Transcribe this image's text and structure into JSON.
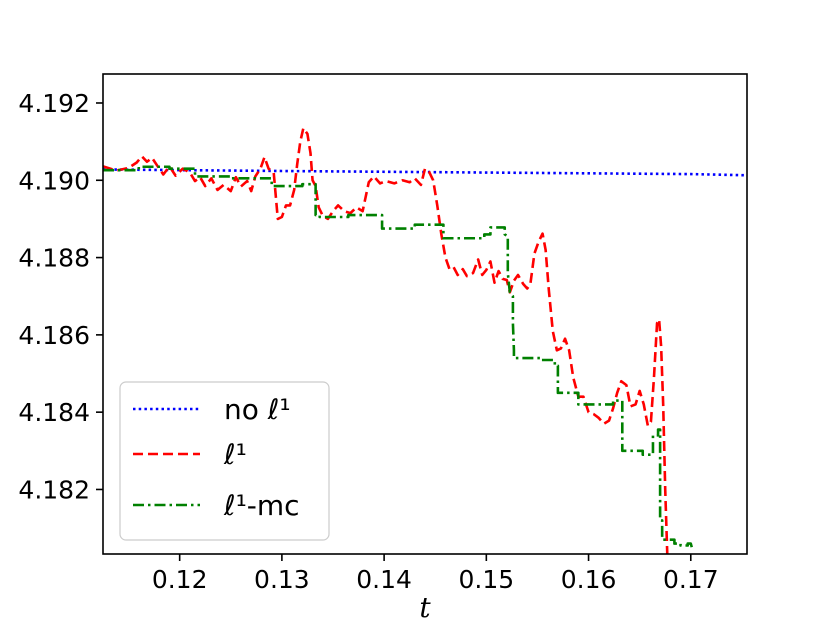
{
  "chart_data": {
    "type": "line",
    "title": "",
    "xlabel": "t",
    "ylabel": "",
    "xlim": [
      0.1125,
      0.1755
    ],
    "ylim": [
      4.18033,
      4.19275
    ],
    "x_ticks": [
      "0.12",
      "0.13",
      "0.14",
      "0.15",
      "0.16",
      "0.17"
    ],
    "y_ticks": [
      "4.182",
      "4.184",
      "4.186",
      "4.188",
      "4.190",
      "4.192"
    ],
    "grid": false,
    "legend_position": "lower-left",
    "series": [
      {
        "name": "no ℓ¹",
        "color": "#0000ff",
        "style": "dotted",
        "points": [
          [
            0.1125,
            4.19028
          ],
          [
            0.13,
            4.19024
          ],
          [
            0.15,
            4.1902
          ],
          [
            0.17,
            4.19016
          ],
          [
            0.1755,
            4.19013
          ]
        ]
      },
      {
        "name": "ℓ¹",
        "color": "#ff0000",
        "style": "dashed",
        "points": [
          [
            0.1125,
            4.19036
          ],
          [
            0.1138,
            4.19025
          ],
          [
            0.115,
            4.19032
          ],
          [
            0.1158,
            4.19046
          ],
          [
            0.1163,
            4.19062
          ],
          [
            0.1168,
            4.19048
          ],
          [
            0.1173,
            4.19058
          ],
          [
            0.1178,
            4.19038
          ],
          [
            0.1184,
            4.19015
          ],
          [
            0.119,
            4.19036
          ],
          [
            0.1196,
            4.19012
          ],
          [
            0.1203,
            4.1903
          ],
          [
            0.121,
            4.1902
          ],
          [
            0.1215,
            4.18998
          ],
          [
            0.122,
            4.19008
          ],
          [
            0.1225,
            4.18985
          ],
          [
            0.1231,
            4.19005
          ],
          [
            0.1237,
            4.18975
          ],
          [
            0.1243,
            4.18988
          ],
          [
            0.125,
            4.18972
          ],
          [
            0.1255,
            4.19008
          ],
          [
            0.126,
            4.18984
          ],
          [
            0.1266,
            4.18998
          ],
          [
            0.127,
            4.18972
          ],
          [
            0.1274,
            4.1901
          ],
          [
            0.1279,
            4.1903
          ],
          [
            0.1283,
            4.1906
          ],
          [
            0.1287,
            4.1903
          ],
          [
            0.1292,
            4.1902
          ],
          [
            0.1296,
            4.189
          ],
          [
            0.13,
            4.18905
          ],
          [
            0.1304,
            4.18935
          ],
          [
            0.1308,
            4.18935
          ],
          [
            0.1312,
            4.18975
          ],
          [
            0.1315,
            4.19042
          ],
          [
            0.1318,
            4.191
          ],
          [
            0.1321,
            4.19135
          ],
          [
            0.1325,
            4.1912
          ],
          [
            0.1328,
            4.1907
          ],
          [
            0.133,
            4.19
          ],
          [
            0.1333,
            4.18985
          ],
          [
            0.1336,
            4.1893
          ],
          [
            0.134,
            4.18908
          ],
          [
            0.1345,
            4.189
          ],
          [
            0.135,
            4.1892
          ],
          [
            0.1355,
            4.18935
          ],
          [
            0.1361,
            4.1892
          ],
          [
            0.1367,
            4.18915
          ],
          [
            0.1373,
            4.1893
          ],
          [
            0.1379,
            4.1892
          ],
          [
            0.1385,
            4.18995
          ],
          [
            0.139,
            4.1901
          ],
          [
            0.1396,
            4.18992
          ],
          [
            0.1402,
            4.18998
          ],
          [
            0.141,
            4.18992
          ],
          [
            0.1418,
            4.19
          ],
          [
            0.1425,
            4.18995
          ],
          [
            0.143,
            4.19005
          ],
          [
            0.1436,
            4.18988
          ],
          [
            0.144,
            4.1903
          ],
          [
            0.1444,
            4.19022
          ],
          [
            0.1448,
            4.19
          ],
          [
            0.1452,
            4.18935
          ],
          [
            0.1456,
            4.1886
          ],
          [
            0.146,
            4.188
          ],
          [
            0.1464,
            4.1877
          ],
          [
            0.1468,
            4.18775
          ],
          [
            0.1472,
            4.18755
          ],
          [
            0.1477,
            4.1877
          ],
          [
            0.1481,
            4.18752
          ],
          [
            0.1487,
            4.1876
          ],
          [
            0.1492,
            4.18795
          ],
          [
            0.1496,
            4.18755
          ],
          [
            0.15,
            4.18768
          ],
          [
            0.1504,
            4.1879
          ],
          [
            0.1508,
            4.18735
          ],
          [
            0.1512,
            4.18765
          ],
          [
            0.1516,
            4.18745
          ],
          [
            0.152,
            4.18742
          ],
          [
            0.1523,
            4.1871
          ],
          [
            0.1527,
            4.1874
          ],
          [
            0.1531,
            4.18755
          ],
          [
            0.1536,
            4.18732
          ],
          [
            0.154,
            4.1872
          ],
          [
            0.1543,
            4.1873
          ],
          [
            0.1547,
            4.1881
          ],
          [
            0.1551,
            4.1884
          ],
          [
            0.1555,
            4.18862
          ],
          [
            0.1558,
            4.1882
          ],
          [
            0.1561,
            4.1872
          ],
          [
            0.1565,
            4.1861
          ],
          [
            0.1569,
            4.1856
          ],
          [
            0.1573,
            4.18565
          ],
          [
            0.1577,
            4.1859
          ],
          [
            0.1581,
            4.1856
          ],
          [
            0.1585,
            4.1849
          ],
          [
            0.159,
            4.1844
          ],
          [
            0.1595,
            4.1844
          ],
          [
            0.16,
            4.184
          ],
          [
            0.1605,
            4.18395
          ],
          [
            0.161,
            4.18385
          ],
          [
            0.1615,
            4.1837
          ],
          [
            0.162,
            4.18378
          ],
          [
            0.1624,
            4.1841
          ],
          [
            0.1628,
            4.1845
          ],
          [
            0.1632,
            4.1848
          ],
          [
            0.1637,
            4.1847
          ],
          [
            0.1641,
            4.18415
          ],
          [
            0.1646,
            4.1842
          ],
          [
            0.165,
            4.18455
          ],
          [
            0.1654,
            4.1842
          ],
          [
            0.1658,
            4.18365
          ],
          [
            0.1661,
            4.18375
          ],
          [
            0.1664,
            4.1849
          ],
          [
            0.1667,
            4.1863
          ],
          [
            0.1669,
            4.1864
          ],
          [
            0.1671,
            4.1857
          ],
          [
            0.1673,
            4.1842
          ],
          [
            0.1675,
            4.182
          ],
          [
            0.1677,
            4.18033
          ]
        ]
      },
      {
        "name": "ℓ¹-mc",
        "color": "#008000",
        "style": "dashdot",
        "points": [
          [
            0.1125,
            4.19026
          ],
          [
            0.116,
            4.19026
          ],
          [
            0.116,
            4.19035
          ],
          [
            0.119,
            4.19035
          ],
          [
            0.119,
            4.1903
          ],
          [
            0.1215,
            4.1903
          ],
          [
            0.1215,
            4.1901
          ],
          [
            0.125,
            4.1901
          ],
          [
            0.125,
            4.19005
          ],
          [
            0.129,
            4.19005
          ],
          [
            0.129,
            4.18985
          ],
          [
            0.132,
            4.18985
          ],
          [
            0.132,
            4.1899
          ],
          [
            0.1333,
            4.1899
          ],
          [
            0.1333,
            4.1891
          ],
          [
            0.1337,
            4.1891
          ],
          [
            0.1337,
            4.18905
          ],
          [
            0.1365,
            4.18905
          ],
          [
            0.1365,
            4.1891
          ],
          [
            0.1398,
            4.1891
          ],
          [
            0.1398,
            4.18875
          ],
          [
            0.143,
            4.18875
          ],
          [
            0.143,
            4.18885
          ],
          [
            0.1458,
            4.18885
          ],
          [
            0.1458,
            4.1885
          ],
          [
            0.1498,
            4.1885
          ],
          [
            0.1498,
            4.1886
          ],
          [
            0.1504,
            4.1886
          ],
          [
            0.1504,
            4.18878
          ],
          [
            0.1518,
            4.18878
          ],
          [
            0.1518,
            4.1886
          ],
          [
            0.1521,
            4.18855
          ],
          [
            0.1521,
            4.1876
          ],
          [
            0.1523,
            4.1871
          ],
          [
            0.1526,
            4.187
          ],
          [
            0.1526,
            4.1863
          ],
          [
            0.1527,
            4.1856
          ],
          [
            0.1527,
            4.1854
          ],
          [
            0.1554,
            4.1854
          ],
          [
            0.1554,
            4.18535
          ],
          [
            0.1567,
            4.18535
          ],
          [
            0.1567,
            4.1852
          ],
          [
            0.157,
            4.1852
          ],
          [
            0.157,
            4.1845
          ],
          [
            0.159,
            4.1845
          ],
          [
            0.159,
            4.1842
          ],
          [
            0.1624,
            4.1842
          ],
          [
            0.1624,
            4.1843
          ],
          [
            0.1633,
            4.1843
          ],
          [
            0.1633,
            4.183
          ],
          [
            0.1653,
            4.183
          ],
          [
            0.1653,
            4.1829
          ],
          [
            0.1663,
            4.1829
          ],
          [
            0.1663,
            4.1834
          ],
          [
            0.1668,
            4.1834
          ],
          [
            0.1668,
            4.18355
          ],
          [
            0.167,
            4.18355
          ],
          [
            0.167,
            4.1812
          ],
          [
            0.1672,
            4.1812
          ],
          [
            0.1672,
            4.1807
          ],
          [
            0.1684,
            4.1807
          ],
          [
            0.1684,
            4.1806
          ],
          [
            0.169,
            4.1806
          ],
          [
            0.169,
            4.18055
          ],
          [
            0.1697,
            4.18055
          ],
          [
            0.1697,
            4.1806
          ],
          [
            0.17,
            4.1806
          ],
          [
            0.1701,
            4.1805
          ]
        ]
      }
    ]
  }
}
